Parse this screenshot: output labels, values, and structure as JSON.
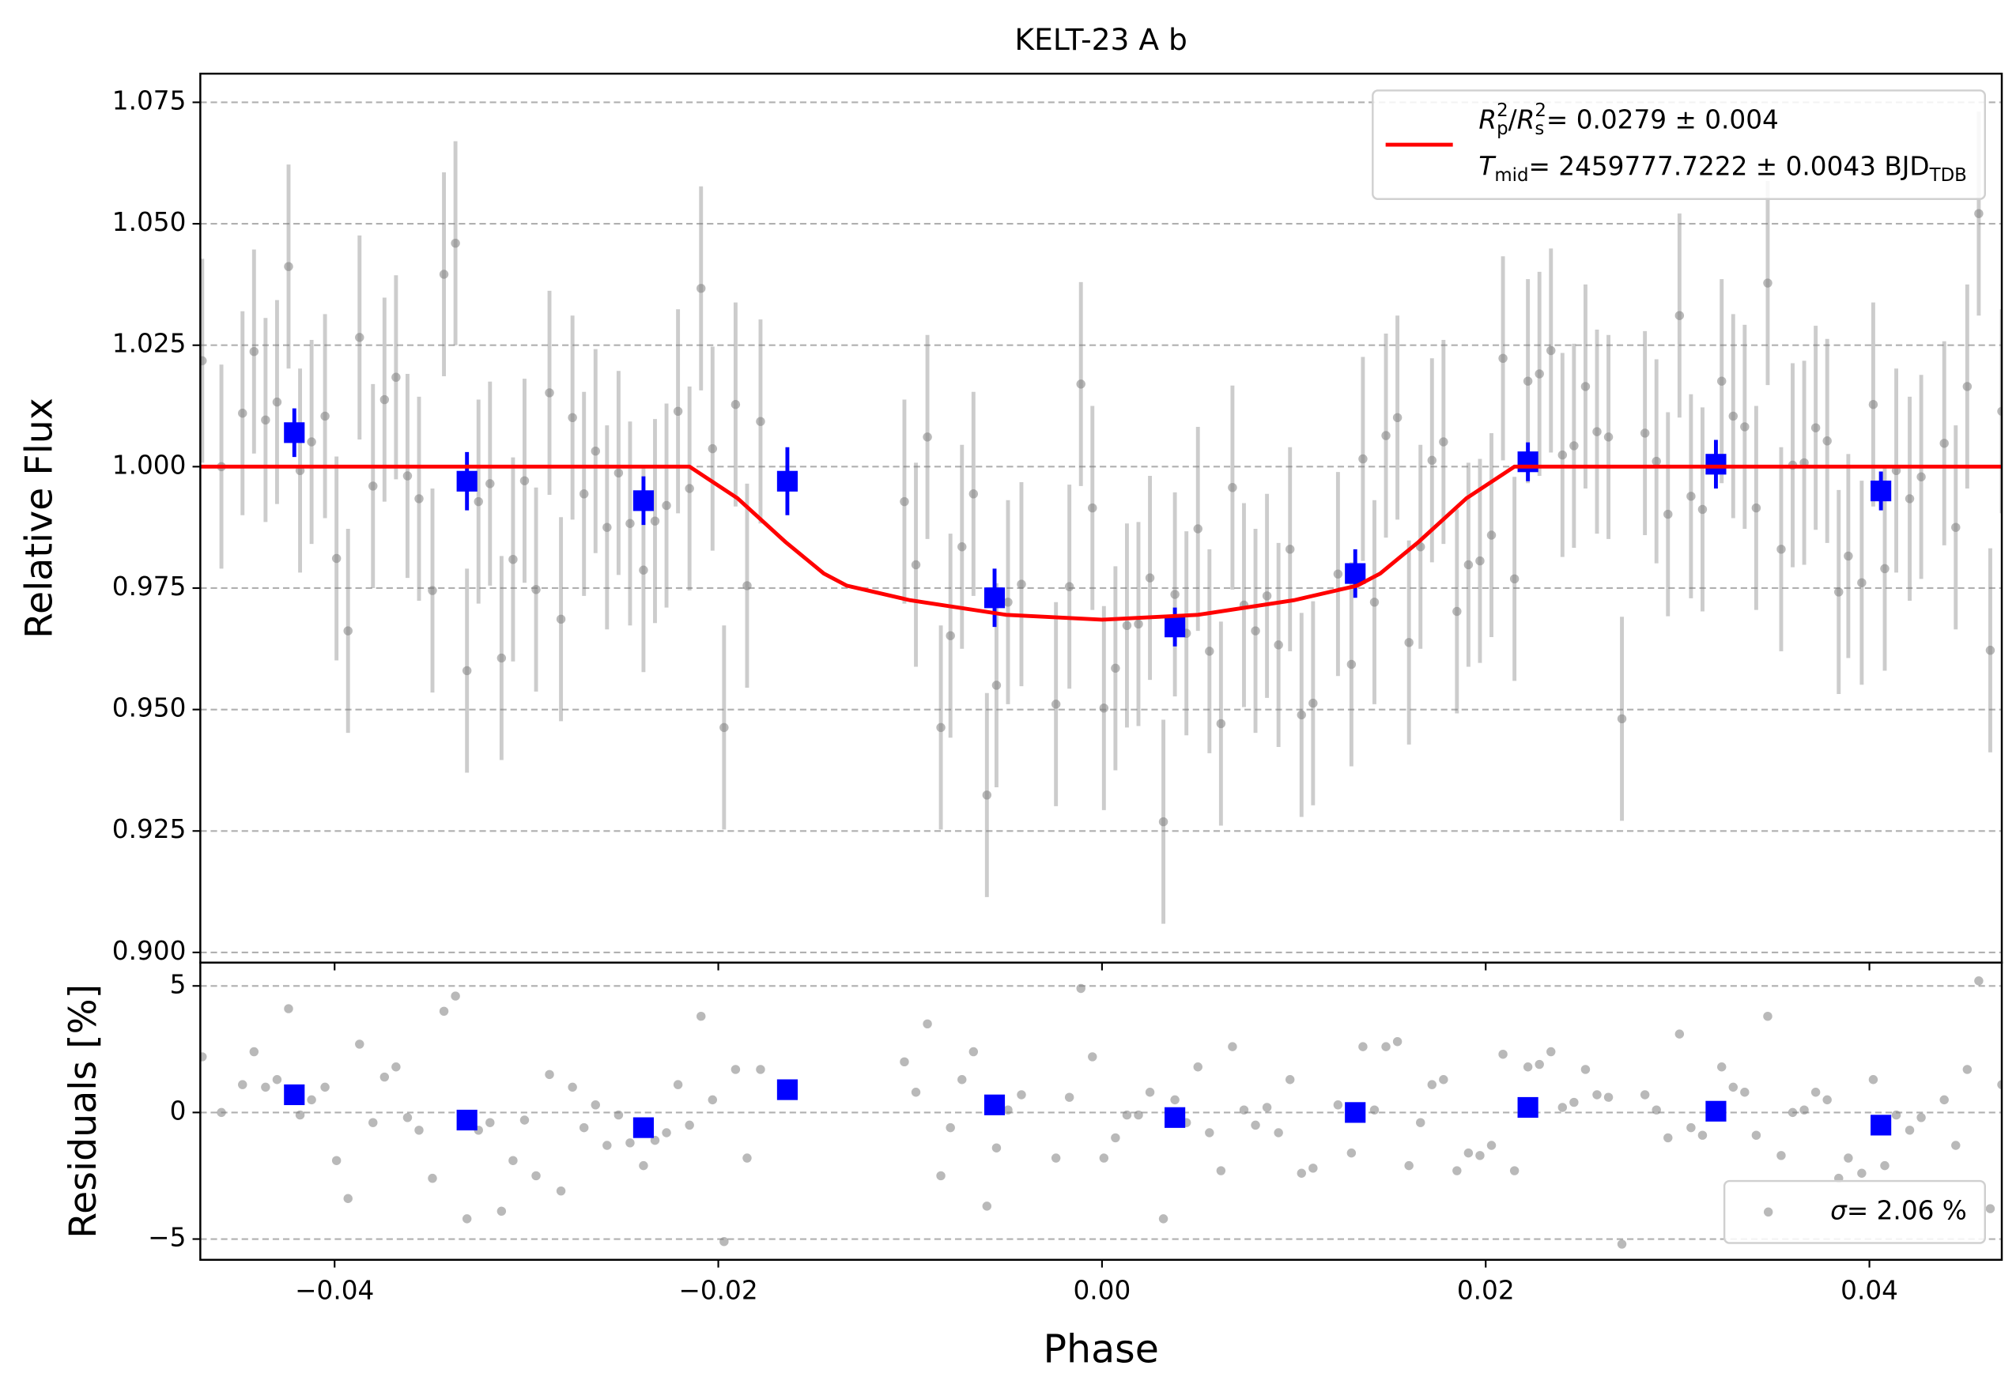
{
  "chart_data": [
    {
      "type": "scatter",
      "title": "KELT-23 A b",
      "ylabel": "Relative Flux",
      "xlim": [
        -0.047,
        0.0469
      ],
      "ylim": [
        0.8979,
        1.0809
      ],
      "yticks": [
        {
          "value": 0.9,
          "label": "0.900"
        },
        0.925,
        {
          "value": 0.95,
          "label": "0.950"
        },
        0.975,
        {
          "value": 1.0,
          "label": "1.000"
        },
        1.025,
        {
          "value": 1.05,
          "label": "1.050"
        },
        1.075
      ],
      "grid": "y",
      "legend": "upper right",
      "series": [
        {
          "color": "#808080",
          "error": 0.021,
          "x": [
            -0.0469,
            -0.0459,
            -0.0448,
            -0.0442,
            -0.0436,
            -0.043,
            -0.0424,
            -0.0418,
            -0.0412,
            -0.0405,
            -0.0399,
            -0.0393,
            -0.0387,
            -0.038,
            -0.0374,
            -0.0368,
            -0.0362,
            -0.0356,
            -0.0349,
            -0.0343,
            -0.0337,
            -0.0331,
            -0.0325,
            -0.0319,
            -0.0313,
            -0.0307,
            -0.0301,
            -0.0295,
            -0.0288,
            -0.0282,
            -0.0276,
            -0.027,
            -0.0264,
            -0.0258,
            -0.0252,
            -0.0246,
            -0.0239,
            -0.0233,
            -0.0227,
            -0.0221,
            -0.0215,
            -0.0209,
            -0.0203,
            -0.0197,
            -0.0191,
            -0.0185,
            -0.0178,
            -0.0103,
            -0.0097,
            -0.0091,
            -0.0084,
            -0.0079,
            -0.0073,
            -0.0067,
            -0.006,
            -0.0055,
            -0.0049,
            -0.0042,
            -0.0024,
            -0.0017,
            -0.0011,
            -0.0005,
            0.0001,
            0.0007,
            0.0013,
            0.0019,
            0.0025,
            0.0032,
            0.0038,
            0.0044,
            0.005,
            0.0056,
            0.0062,
            0.0068,
            0.0074,
            0.008,
            0.0086,
            0.0092,
            0.0098,
            0.0104,
            0.011,
            0.0123,
            0.013,
            0.0136,
            0.0142,
            0.0148,
            0.0154,
            0.016,
            0.0166,
            0.0172,
            0.0178,
            0.0185,
            0.0191,
            0.0197,
            0.0203,
            0.0209,
            0.0215,
            0.0222,
            0.0228,
            0.0234,
            0.024,
            0.0246,
            0.0252,
            0.0258,
            0.0264,
            0.0271,
            0.0283,
            0.0289,
            0.0295,
            0.0301,
            0.0307,
            0.0313,
            0.0323,
            0.0329,
            0.0335,
            0.0341,
            0.0347,
            0.0354,
            0.036,
            0.0366,
            0.0372,
            0.0378,
            0.0384,
            0.0389,
            0.0396,
            0.0402,
            0.0408,
            0.0414,
            0.0421,
            0.0427,
            0.0439,
            0.0445,
            0.0451,
            0.0457,
            0.0463,
            0.0469
          ],
          "values": [
            1.0218,
            1.0,
            1.011,
            1.0237,
            1.0096,
            1.0133,
            1.0412,
            0.9992,
            1.0051,
            1.0104,
            0.9811,
            0.9662,
            1.0266,
            0.996,
            1.0138,
            1.0184,
            0.9981,
            0.9934,
            0.9745,
            1.0396,
            1.046,
            0.958,
            0.9928,
            0.9965,
            0.9606,
            0.9809,
            0.9971,
            0.9747,
            1.0152,
            0.9686,
            1.0101,
            0.9944,
            1.0032,
            0.9875,
            0.9987,
            0.9883,
            0.9787,
            0.9888,
            0.992,
            1.0114,
            0.9955,
            1.0367,
            1.0037,
            0.9463,
            1.0128,
            0.9755,
            1.0093,
            0.9928,
            0.9798,
            1.0061,
            0.9463,
            0.9652,
            0.9835,
            0.9944,
            0.9324,
            0.955,
            0.9721,
            0.9758,
            0.9511,
            0.9753,
            1.017,
            0.9915,
            0.9503,
            0.9585,
            0.9673,
            0.9676,
            0.9771,
            0.9269,
            0.9737,
            0.9657,
            0.9872,
            0.962,
            0.9471,
            0.9957,
            0.9715,
            0.9662,
            0.9734,
            0.9633,
            0.983,
            0.9489,
            0.9513,
            0.9779,
            0.9593,
            1.0016,
            0.9721,
            1.0064,
            1.0101,
            0.9638,
            0.9835,
            1.0013,
            1.0051,
            0.9702,
            0.9798,
            0.9806,
            0.9859,
            1.0223,
            0.9769,
            1.0176,
            1.0191,
            1.0239,
            1.0024,
            1.0043,
            1.0165,
            1.0072,
            1.0061,
            0.9481,
            1.0069,
            1.0011,
            0.9902,
            1.0311,
            0.9939,
            0.9912,
            1.0176,
            1.0104,
            1.0082,
            0.9915,
            1.0378,
            0.983,
            1.0003,
            1.0008,
            1.008,
            1.0053,
            0.9742,
            0.9816,
            0.9761,
            1.0128,
            0.979,
            0.9992,
            0.9934,
            0.9979,
            1.0048,
            0.9875,
            1.0165,
            1.0521,
            0.9622,
            1.0114
          ]
        },
        {
          "color": "#0000ff",
          "x": [
            -0.0421,
            -0.0331,
            -0.0239,
            -0.0164,
            -0.0056,
            0.0038,
            0.0132,
            0.0222,
            0.032,
            0.0406
          ],
          "values": [
            1.007,
            0.997,
            0.993,
            0.997,
            0.973,
            0.967,
            0.978,
            1.001,
            1.0005,
            0.995
          ],
          "errors": [
            0.005,
            0.006,
            0.005,
            0.007,
            0.006,
            0.004,
            0.005,
            0.004,
            0.005,
            0.004
          ]
        },
        {
          "type": "line",
          "color": "#ff0000",
          "x": [
            -0.047,
            -0.0215,
            -0.019,
            -0.0165,
            -0.0145,
            -0.0133,
            -0.01,
            -0.005,
            0,
            0.005,
            0.01,
            0.0133,
            0.0145,
            0.0165,
            0.019,
            0.0215,
            0.0469
          ],
          "values": [
            1,
            1,
            0.9935,
            0.9845,
            0.978,
            0.9755,
            0.9725,
            0.9695,
            0.9685,
            0.9695,
            0.9725,
            0.9755,
            0.978,
            0.9845,
            0.9935,
            1,
            1
          ],
          "name_parts": [
            [
              {
                "t": "R",
                "italic": true
              },
              {
                "t": "p",
                "sub": true
              },
              {
                "t": "2",
                "sup": true,
                "stack": true
              },
              {
                "t": "/"
              },
              {
                "t": "R",
                "italic": true
              },
              {
                "t": "s",
                "sub": true
              },
              {
                "t": "2",
                "sup": true,
                "stack": true
              },
              {
                "t": " = 0.0279 ± 0.004"
              }
            ],
            [
              {
                "t": "T",
                "italic": true
              },
              {
                "t": "mid",
                "sub": true
              },
              {
                "t": " = 2459777.7222 ± 0.0043 BJD"
              },
              {
                "t": "TDB",
                "sub": true
              }
            ]
          ]
        }
      ]
    },
    {
      "type": "scatter",
      "ylabel": "Residuals [%]",
      "xlabel": "Phase",
      "xlim": [
        -0.047,
        0.0469
      ],
      "ylim": [
        -5.82,
        5.92
      ],
      "xticks": [
        {
          "value": -0.04,
          "label": "−0.04"
        },
        {
          "value": -0.02,
          "label": "−0.02"
        },
        {
          "value": 0,
          "label": "0.00"
        },
        0.02,
        0.04
      ],
      "yticks": [
        {
          "value": -5,
          "label": "−5"
        },
        0,
        5
      ],
      "grid": "y",
      "legend": "lower right",
      "series": [
        {
          "color": "#808080",
          "name_parts": [
            [
              {
                "t": "σ",
                "italic": true
              },
              {
                "t": " = 2.06 %"
              }
            ]
          ],
          "x": [
            -0.0469,
            -0.0459,
            -0.0448,
            -0.0442,
            -0.0436,
            -0.043,
            -0.0424,
            -0.0418,
            -0.0412,
            -0.0405,
            -0.0399,
            -0.0393,
            -0.0387,
            -0.038,
            -0.0374,
            -0.0368,
            -0.0362,
            -0.0356,
            -0.0349,
            -0.0343,
            -0.0337,
            -0.0331,
            -0.0325,
            -0.0319,
            -0.0313,
            -0.0307,
            -0.0301,
            -0.0295,
            -0.0288,
            -0.0282,
            -0.0276,
            -0.027,
            -0.0264,
            -0.0258,
            -0.0252,
            -0.0246,
            -0.0239,
            -0.0233,
            -0.0227,
            -0.0221,
            -0.0215,
            -0.0209,
            -0.0203,
            -0.0197,
            -0.0191,
            -0.0185,
            -0.0178,
            -0.0103,
            -0.0097,
            -0.0091,
            -0.0084,
            -0.0079,
            -0.0073,
            -0.0067,
            -0.006,
            -0.0055,
            -0.0049,
            -0.0042,
            -0.0024,
            -0.0017,
            -0.0011,
            -0.0005,
            0.0001,
            0.0007,
            0.0013,
            0.0019,
            0.0025,
            0.0032,
            0.0038,
            0.0044,
            0.005,
            0.0056,
            0.0062,
            0.0068,
            0.0074,
            0.008,
            0.0086,
            0.0092,
            0.0098,
            0.0104,
            0.011,
            0.0123,
            0.013,
            0.0136,
            0.0142,
            0.0148,
            0.0154,
            0.016,
            0.0166,
            0.0172,
            0.0178,
            0.0185,
            0.0191,
            0.0197,
            0.0203,
            0.0209,
            0.0215,
            0.0222,
            0.0228,
            0.0234,
            0.024,
            0.0246,
            0.0252,
            0.0258,
            0.0264,
            0.0271,
            0.0283,
            0.0289,
            0.0295,
            0.0301,
            0.0307,
            0.0313,
            0.0323,
            0.0329,
            0.0335,
            0.0341,
            0.0347,
            0.0354,
            0.036,
            0.0366,
            0.0372,
            0.0378,
            0.0384,
            0.0389,
            0.0396,
            0.0402,
            0.0408,
            0.0414,
            0.0421,
            0.0427,
            0.0439,
            0.0445,
            0.0451,
            0.0457,
            0.0463,
            0.0469
          ],
          "values": [
            2.2,
            0.0,
            1.1,
            2.4,
            1.0,
            1.3,
            4.1,
            -0.1,
            0.5,
            1.0,
            -1.9,
            -3.4,
            2.7,
            -0.4,
            1.4,
            1.8,
            -0.2,
            -0.7,
            -2.6,
            4.0,
            4.6,
            -4.2,
            -0.7,
            -0.4,
            -3.9,
            -1.9,
            -0.3,
            -2.5,
            1.5,
            -3.1,
            1.0,
            -0.6,
            0.3,
            -1.3,
            -0.1,
            -1.2,
            -2.1,
            -1.1,
            -0.8,
            1.1,
            -0.5,
            3.8,
            0.5,
            -5.1,
            1.7,
            -1.8,
            1.7,
            2.0,
            0.8,
            3.5,
            -2.5,
            -0.6,
            1.3,
            2.4,
            -3.7,
            -1.4,
            0.1,
            0.7,
            -1.8,
            0.6,
            4.9,
            2.2,
            -1.8,
            -1.0,
            -0.1,
            -0.1,
            0.8,
            -4.2,
            0.5,
            -0.4,
            1.8,
            -0.8,
            -2.3,
            2.6,
            0.1,
            -0.5,
            0.2,
            -0.8,
            1.3,
            -2.4,
            -2.2,
            0.3,
            -1.6,
            2.6,
            0.1,
            2.6,
            2.8,
            -2.1,
            -0.4,
            1.1,
            1.3,
            -2.3,
            -1.6,
            -1.7,
            -1.3,
            2.3,
            -2.3,
            1.8,
            1.9,
            2.4,
            0.2,
            0.4,
            1.7,
            0.7,
            0.6,
            -5.2,
            0.7,
            0.1,
            -1.0,
            3.1,
            -0.6,
            -0.9,
            1.8,
            1.0,
            0.8,
            -0.9,
            3.8,
            -1.7,
            0.0,
            0.1,
            0.8,
            0.5,
            -2.6,
            -1.8,
            -2.4,
            1.3,
            -2.1,
            -0.1,
            -0.7,
            -0.2,
            0.5,
            -1.3,
            1.7,
            5.2,
            -3.8,
            1.1
          ]
        },
        {
          "color": "#0000ff",
          "x": [
            -0.0421,
            -0.0331,
            -0.0239,
            -0.0164,
            -0.0056,
            0.0038,
            0.0132,
            0.0222,
            0.032,
            0.0406
          ],
          "values": [
            0.7,
            -0.3,
            -0.6,
            0.9,
            0.3,
            -0.2,
            0.0,
            0.2,
            0.05,
            -0.5
          ]
        }
      ]
    }
  ]
}
